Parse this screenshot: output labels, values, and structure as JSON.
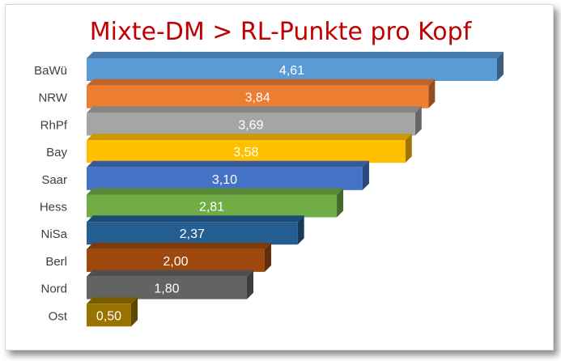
{
  "chart_data": {
    "type": "bar",
    "orientation": "horizontal",
    "title": "Mixte-DM > RL-Punkte pro Kopf",
    "categories": [
      "BaWü",
      "NRW",
      "RhPf",
      "Bay",
      "Saar",
      "Hess",
      "NiSa",
      "Berl",
      "Nord",
      "Ost"
    ],
    "values": [
      4.61,
      3.84,
      3.69,
      3.58,
      3.1,
      2.81,
      2.37,
      2.0,
      1.8,
      0.5
    ],
    "value_labels": [
      "4,61",
      "3,84",
      "3,69",
      "3,58",
      "3,10",
      "2,81",
      "2,37",
      "2,00",
      "1,80",
      "0,50"
    ],
    "colors": [
      "#5b9bd5",
      "#ed7d31",
      "#a5a5a5",
      "#ffc000",
      "#4472c4",
      "#70ad47",
      "#255e91",
      "#9e480e",
      "#636363",
      "#997300"
    ],
    "xlim": [
      0,
      4.61
    ],
    "grid": false,
    "legend": "none",
    "xlabel": "",
    "ylabel": ""
  }
}
